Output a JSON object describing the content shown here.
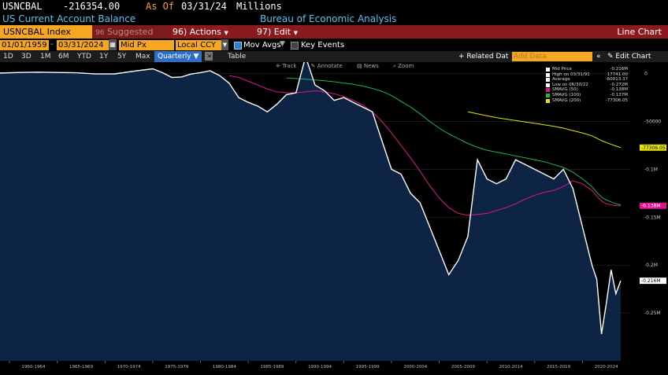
{
  "header": {
    "ticker": "USNCBAL",
    "value": "-216354.00",
    "as_of_label": "As Of",
    "as_of_date": "03/31/24",
    "units": "Millions",
    "description": "US Current Account Balance",
    "source": "Bureau of Economic Analysis"
  },
  "command_bar": {
    "security": "USNCBAL Index",
    "suggested": "Suggested Charts",
    "suggested_icon": "96",
    "actions_num": "96)",
    "actions": "Actions",
    "edit_num": "97)",
    "edit": "Edit",
    "chart_type": "Line Chart"
  },
  "options": {
    "start_date": "01/01/1959",
    "end_date": "03/31/2024",
    "field": "Mid Px",
    "currency": "Local CCY",
    "mov_avgs": "Mov Avgs",
    "key_events": "Key Events"
  },
  "periods": {
    "items": [
      "1D",
      "3D",
      "1M",
      "6M",
      "YTD",
      "1Y",
      "5Y",
      "Max"
    ],
    "selected": "Quarterly",
    "table": "Table",
    "related": "+ Related Dat",
    "add_data_placeholder": "Add Data",
    "edit_chart": "Edit Chart"
  },
  "tools": {
    "track": "Track",
    "annotate": "Annotate",
    "news": "News",
    "zoom": "Zoom"
  },
  "legend": [
    {
      "name": "Mid Price",
      "value": "-0.216M",
      "color": "#ffffff"
    },
    {
      "name": "High on 03/31/91",
      "value": "17741.00",
      "color": "#ffffff"
    },
    {
      "name": "Average",
      "value": "-60013.37",
      "color": "#ffffff"
    },
    {
      "name": "Low on 06/30/22",
      "value": "-0.272M",
      "color": "#ffffff"
    },
    {
      "name": "SMAVG (50)",
      "value": "-0.138M",
      "color": "#e0148c"
    },
    {
      "name": "SMAVG (100)",
      "value": "-0.137M",
      "color": "#22b14c"
    },
    {
      "name": "SMAVG (200)",
      "value": "-77306.05",
      "color": "#e5e500"
    }
  ],
  "chart_data": {
    "type": "area",
    "x": [
      "1959",
      "1961",
      "1963",
      "1965",
      "1967",
      "1969",
      "1971",
      "1973",
      "1975",
      "1976",
      "1977",
      "1978",
      "1979",
      "1980",
      "1981",
      "1982",
      "1983",
      "1984",
      "1985",
      "1986",
      "1987",
      "1988",
      "1989",
      "1990",
      "1991",
      "1992",
      "1993",
      "1994",
      "1995",
      "1996",
      "1997",
      "1998",
      "1999",
      "2000",
      "2001",
      "2002",
      "2003",
      "2004",
      "2005",
      "2006",
      "2007",
      "2008",
      "2009",
      "2010",
      "2011",
      "2012",
      "2013",
      "2014",
      "2015",
      "2016",
      "2017",
      "2018",
      "2019",
      "2020",
      "2021",
      "2021.5",
      "2022",
      "2022.5",
      "2023",
      "2023.5",
      "2024"
    ],
    "series": [
      {
        "name": "Mid Price",
        "color": "#ffffff",
        "values": [
          500,
          1200,
          1500,
          1200,
          800,
          -400,
          -300,
          2500,
          5000,
          1000,
          -4000,
          -3500,
          -500,
          1000,
          3000,
          -2000,
          -10000,
          -25000,
          -30000,
          -34000,
          -40000,
          -32000,
          -22000,
          -20000,
          17741,
          -12000,
          -18000,
          -28000,
          -25000,
          -30000,
          -35000,
          -40000,
          -70000,
          -100000,
          -105000,
          -125000,
          -135000,
          -160000,
          -185000,
          -210000,
          -195000,
          -170000,
          -90000,
          -110000,
          -115000,
          -110000,
          -90000,
          -95000,
          -100000,
          -105000,
          -110000,
          -100000,
          -120000,
          -160000,
          -200000,
          -215000,
          -272000,
          -240000,
          -205000,
          -230000,
          -216354
        ]
      },
      {
        "name": "SMAVG (50)",
        "color": "#e0148c",
        "values": [
          null,
          null,
          null,
          null,
          null,
          null,
          null,
          null,
          null,
          null,
          null,
          null,
          null,
          null,
          null,
          null,
          -2000,
          -4000,
          -8000,
          -12000,
          -16000,
          -19000,
          -20000,
          -20000,
          -19000,
          -18000,
          -19000,
          -21000,
          -24000,
          -28000,
          -33000,
          -40000,
          -50000,
          -62000,
          -75000,
          -88000,
          -102000,
          -117000,
          -130000,
          -140000,
          -146000,
          -148000,
          -147000,
          -146000,
          -143000,
          -140000,
          -136000,
          -131000,
          -127000,
          -124000,
          -122000,
          -118000,
          -112000,
          -115000,
          -122000,
          -128000,
          -133000,
          -136000,
          -137000,
          -138000,
          -138000
        ]
      },
      {
        "name": "SMAVG (100)",
        "color": "#22b14c",
        "values": [
          null,
          null,
          null,
          null,
          null,
          null,
          null,
          null,
          null,
          null,
          null,
          null,
          null,
          null,
          null,
          null,
          null,
          null,
          null,
          null,
          null,
          null,
          -4500,
          -5200,
          -5800,
          -6600,
          -7500,
          -8500,
          -9800,
          -11200,
          -13000,
          -15500,
          -18500,
          -23000,
          -29000,
          -35000,
          -42000,
          -50000,
          -57000,
          -63000,
          -68000,
          -73000,
          -77000,
          -80000,
          -82000,
          -84000,
          -86000,
          -88000,
          -90000,
          -92000,
          -95000,
          -98000,
          -103000,
          -110000,
          -118000,
          -124000,
          -129000,
          -132000,
          -134000,
          -136000,
          -137000
        ]
      },
      {
        "name": "SMAVG (200)",
        "color": "#e5e500",
        "values": [
          null,
          null,
          null,
          null,
          null,
          null,
          null,
          null,
          null,
          null,
          null,
          null,
          null,
          null,
          null,
          null,
          null,
          null,
          null,
          null,
          null,
          null,
          null,
          null,
          null,
          null,
          null,
          null,
          null,
          null,
          null,
          null,
          null,
          null,
          null,
          null,
          null,
          null,
          null,
          null,
          null,
          -40000,
          -42000,
          -44000,
          -46000,
          -47500,
          -49000,
          -50500,
          -52000,
          -53500,
          -55000,
          -57000,
          -59500,
          -62000,
          -65000,
          -67500,
          -70000,
          -72000,
          -74000,
          -75500,
          -77306.05
        ]
      }
    ],
    "y_ticks": [
      "0",
      "-50000",
      "-0.1M",
      "-0.15M",
      "-0.2M",
      "-0.25M"
    ],
    "y_tick_values": [
      0,
      -50000,
      -100000,
      -150000,
      -200000,
      -250000
    ],
    "ylim": [
      -300000,
      12000
    ],
    "x_ticks": [
      "1960-1964",
      "1965-1969",
      "1970-1974",
      "1975-1979",
      "1980-1984",
      "1985-1989",
      "1990-1994",
      "1995-1999",
      "2000-2004",
      "2005-2009",
      "2010-2014",
      "2015-2019",
      "2020-2024"
    ],
    "x_tick_values": [
      1962.5,
      1967.5,
      1972.5,
      1977.5,
      1982.5,
      1987.5,
      1992.5,
      1997.5,
      2002.5,
      2007.5,
      2012.5,
      2017.5,
      2022.5
    ],
    "xlim": [
      1959,
      2025
    ],
    "axis_tags": [
      {
        "text": "-77306.05",
        "value": -77306.05,
        "bg": "#e5e500",
        "fg": "#000"
      },
      {
        "text": "-0.138M",
        "value": -138000,
        "bg": "#e0148c",
        "fg": "#fff"
      },
      {
        "text": "-0.216M",
        "value": -216354,
        "bg": "#ffffff",
        "fg": "#000"
      }
    ],
    "area_color": "#0e2444"
  }
}
